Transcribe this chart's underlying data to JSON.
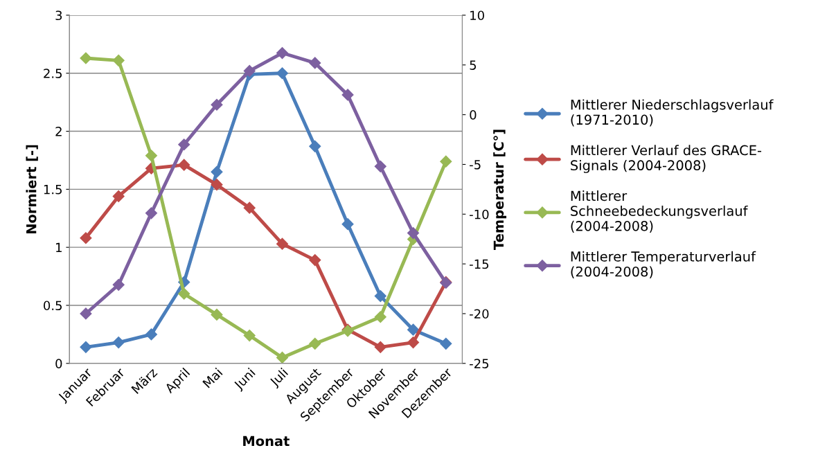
{
  "chart_data": {
    "type": "line",
    "xlabel": "Monat",
    "ylabel": "Normiert [-]",
    "y2label": "Temperatur [C°]",
    "categories": [
      "Januar",
      "Februar",
      "März",
      "April",
      "Mai",
      "Juni",
      "Juli",
      "August",
      "September",
      "Oktober",
      "November",
      "Dezember"
    ],
    "series": [
      {
        "name": "Mittlerer Niederschlagsverlauf\n(1971-2010)",
        "color": "#4a7ebb",
        "values": [
          0.14,
          0.18,
          0.25,
          0.7,
          1.65,
          2.49,
          2.5,
          1.87,
          1.2,
          0.58,
          0.29,
          0.17
        ]
      },
      {
        "name": "Mittlerer Verlauf des GRACE-\nSignals (2004-2008)",
        "color": "#be4b48",
        "values": [
          1.08,
          1.44,
          1.68,
          1.71,
          1.54,
          1.34,
          1.03,
          0.89,
          0.29,
          0.14,
          0.18,
          0.7
        ]
      },
      {
        "name": "Mittlerer\nSchneebedeckungsverlauf\n(2004-2008)",
        "color": "#98b954",
        "values": [
          2.63,
          2.61,
          1.79,
          0.6,
          0.42,
          0.24,
          0.05,
          0.17,
          0.28,
          0.4,
          1.07,
          1.74
        ]
      },
      {
        "name": "Mittlerer Temperaturverlauf\n(2004-2008)",
        "color": "#7d60a0",
        "axis": "y2",
        "values": [
          -20.0,
          -17.1,
          -9.9,
          -3.0,
          1.0,
          4.4,
          6.2,
          5.2,
          2.0,
          -5.2,
          -11.9,
          -16.9
        ]
      }
    ],
    "ylim": [
      0,
      3
    ],
    "yticks": [
      0,
      {
        "value": 0.5,
        "label": "0.5"
      },
      1,
      {
        "value": 1.5,
        "label": "1.5"
      },
      2,
      {
        "value": 2.5,
        "label": "2.5"
      },
      3
    ],
    "y2lim": [
      -25,
      10
    ],
    "y2ticks": [
      -25,
      -20,
      -15,
      -10,
      -5,
      0,
      5,
      10
    ],
    "grid": "y",
    "legend": "right",
    "marker": "diamond",
    "line_style": "solid"
  }
}
